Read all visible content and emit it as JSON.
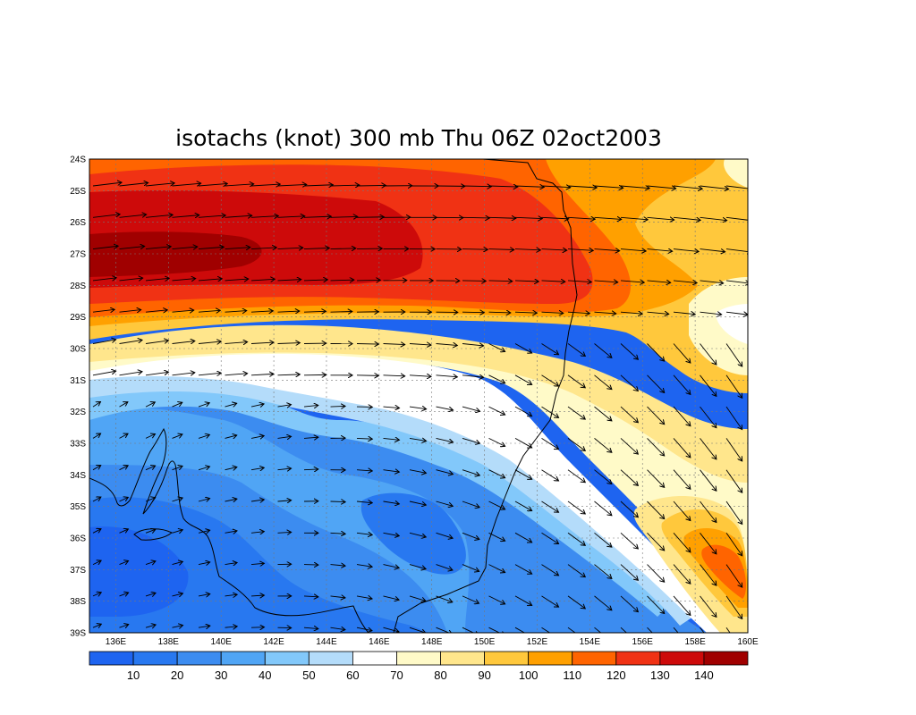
{
  "title": "isotachs (knot) 300 mb Thu 06Z 02oct2003",
  "map": {
    "lat_labels": [
      "24S",
      "25S",
      "26S",
      "27S",
      "28S",
      "29S",
      "30S",
      "31S",
      "32S",
      "33S",
      "34S",
      "35S",
      "36S",
      "37S",
      "38S",
      "39S"
    ],
    "lon_labels": [
      "136E",
      "138E",
      "140E",
      "142E",
      "144E",
      "146E",
      "148E",
      "150E",
      "152E",
      "154E",
      "156E",
      "158E",
      "160E"
    ],
    "lat_range": [
      -39,
      -24
    ],
    "lon_range": [
      135,
      160
    ],
    "grid": true
  },
  "colorbar": {
    "labels": [
      "10",
      "20",
      "30",
      "40",
      "50",
      "60",
      "70",
      "80",
      "90",
      "100",
      "110",
      "120",
      "130",
      "140"
    ],
    "colors": [
      "#1e64f0",
      "#2878f0",
      "#3c8cf0",
      "#50a5f5",
      "#82c8fa",
      "#b4dcfa",
      "#ffffff",
      "#fffac8",
      "#ffe68c",
      "#ffc83c",
      "#ffa000",
      "#ff6400",
      "#f03214",
      "#cd0a0a",
      "#a00000"
    ]
  },
  "field_colors": {
    "v_lt10": "#1e64f0",
    "v10": "#2878f0",
    "v20": "#3c8cf0",
    "v30": "#50a5f5",
    "v40": "#82c8fa",
    "v50": "#b4dcfa",
    "v60": "#ffffff",
    "v80": "#fffac8",
    "v90": "#ffe68c",
    "v100": "#ffc83c",
    "v110": "#ffa000",
    "v120": "#ff6400",
    "v130": "#f03214",
    "v140": "#cd0a0a",
    "v150": "#a00000"
  }
}
